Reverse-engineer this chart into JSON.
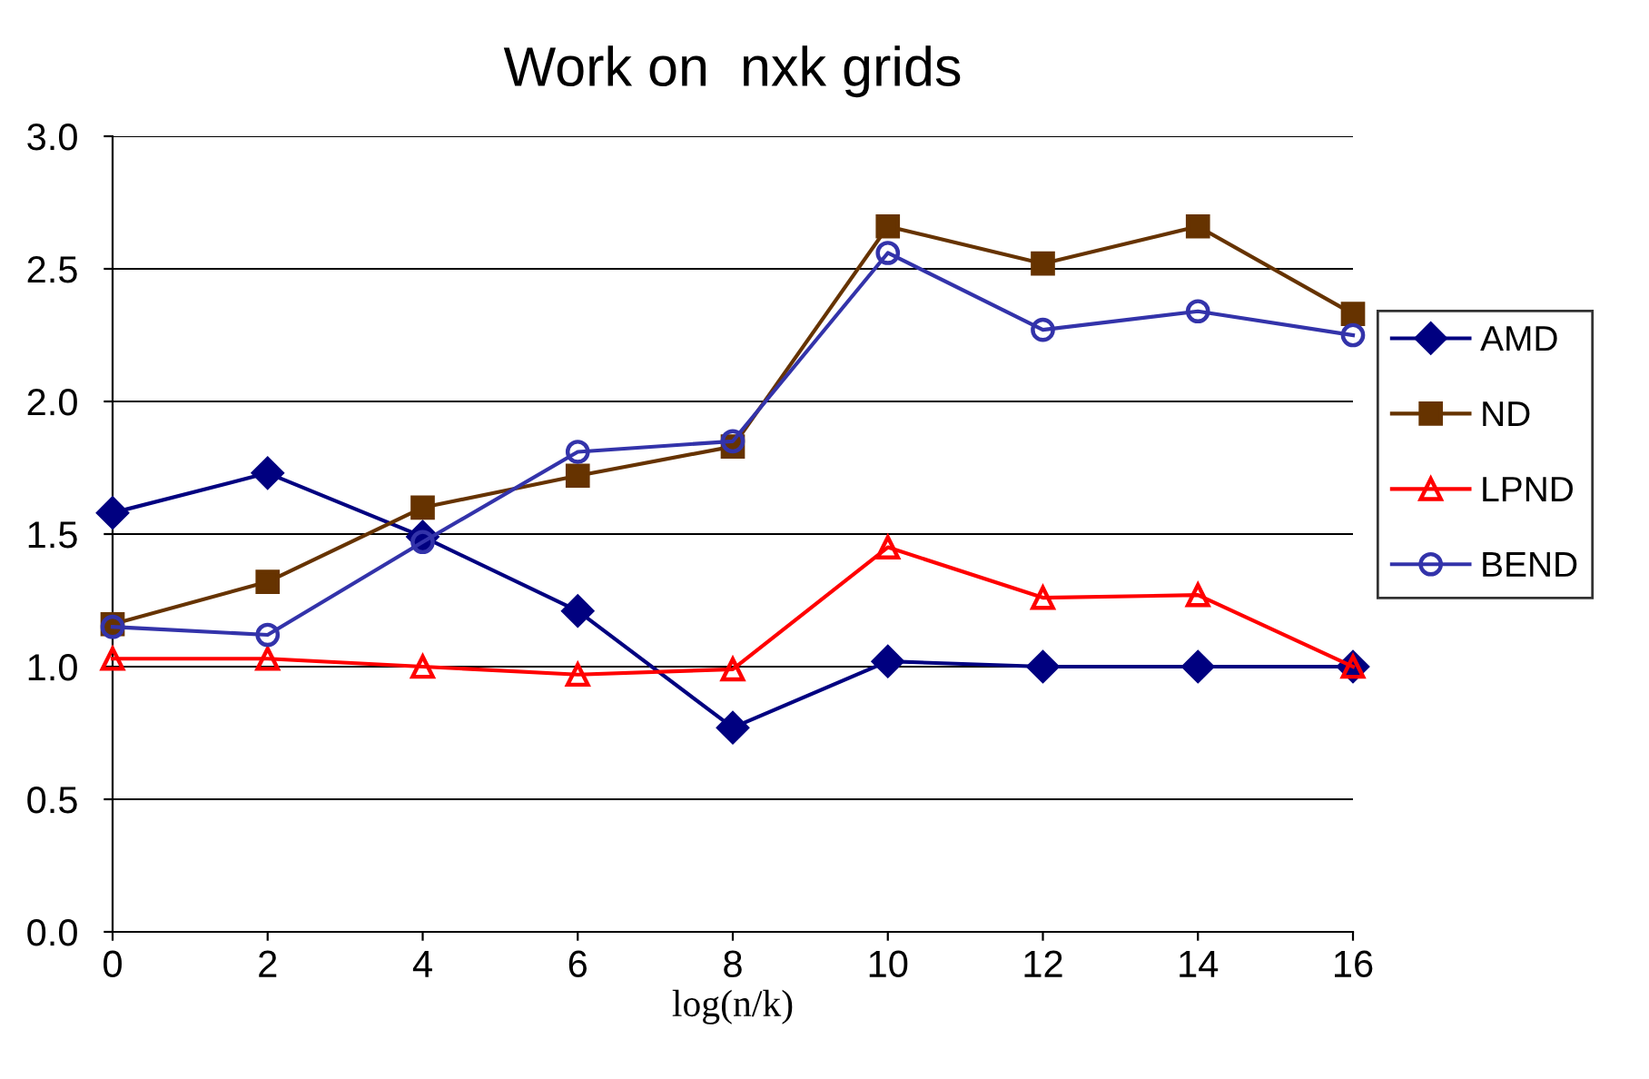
{
  "chart_data": {
    "type": "line",
    "title": "Work on  nxk grids",
    "xlabel": "log(n/k)",
    "x": [
      0,
      2,
      4,
      6,
      8,
      10,
      12,
      14,
      16
    ],
    "series": [
      {
        "name": "AMD",
        "color": "#000080",
        "marker": "diamond",
        "values": [
          1.58,
          1.73,
          1.49,
          1.21,
          0.77,
          1.02,
          1.0,
          1.0,
          1.0
        ]
      },
      {
        "name": "ND",
        "color": "#663300",
        "marker": "square",
        "values": [
          1.16,
          1.32,
          1.6,
          1.72,
          1.83,
          2.66,
          2.52,
          2.66,
          2.33
        ]
      },
      {
        "name": "LPND",
        "color": "#ff0000",
        "marker": "triangle",
        "values": [
          1.03,
          1.03,
          1.0,
          0.97,
          0.99,
          1.45,
          1.26,
          1.27,
          1.0
        ]
      },
      {
        "name": "BEND",
        "color": "#3333aa",
        "marker": "circle",
        "values": [
          1.15,
          1.12,
          1.47,
          1.81,
          1.85,
          2.56,
          2.27,
          2.34,
          2.25
        ]
      }
    ],
    "xlim": [
      0,
      16
    ],
    "xticks": [
      0,
      2,
      4,
      6,
      8,
      10,
      12,
      14,
      16
    ],
    "ylim": [
      0,
      3
    ],
    "yticks": [
      {
        "value": 0,
        "label": "0.0"
      },
      {
        "value": 0.5,
        "label": "0.5"
      },
      {
        "value": 1,
        "label": "1.0"
      },
      {
        "value": 1.5,
        "label": "1.5"
      },
      {
        "value": 2,
        "label": "2.0"
      },
      {
        "value": 2.5,
        "label": "2.5"
      },
      {
        "value": 3,
        "label": "3.0"
      }
    ],
    "grid": "y",
    "legend": "right"
  }
}
